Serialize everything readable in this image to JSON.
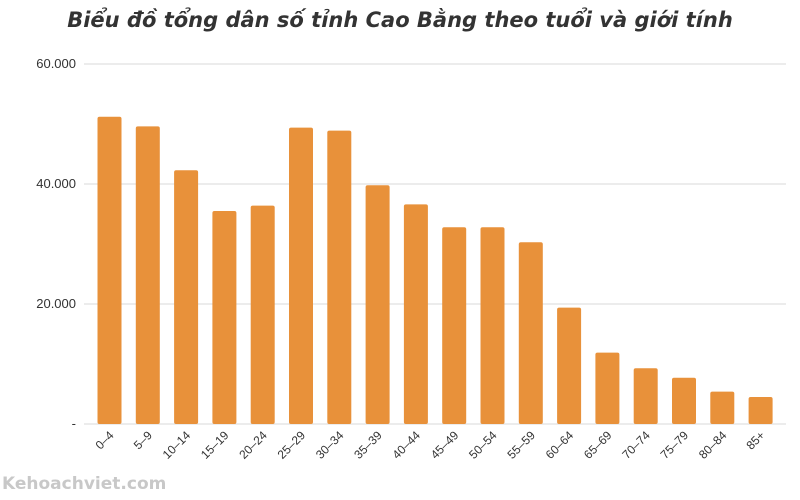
{
  "chart_data": {
    "type": "bar",
    "title": "Biểu đồ tổng dân số tỉnh Cao Bằng theo tuổi và giới tính",
    "xlabel": "",
    "ylabel": "",
    "categories": [
      "0–4",
      "5–9",
      "10–14",
      "15–19",
      "20–24",
      "25–29",
      "30–34",
      "35–39",
      "40–44",
      "45–49",
      "50–54",
      "55–59",
      "60–64",
      "65–69",
      "70–74",
      "75–79",
      "80–84",
      "85+"
    ],
    "values": [
      51200,
      49600,
      42300,
      35500,
      36400,
      49400,
      48900,
      39800,
      36600,
      32800,
      32800,
      30300,
      19400,
      11900,
      9300,
      7700,
      5400,
      4500
    ],
    "ylim": [
      0,
      60000
    ],
    "yticks": [
      {
        "value": 0,
        "label": "-"
      },
      {
        "value": 20000,
        "label": "20.000"
      },
      {
        "value": 40000,
        "label": "40.000"
      },
      {
        "value": 60000,
        "label": "60.000"
      }
    ],
    "grid": true,
    "bar_color": "#E8913A",
    "grid_color": "#d9d9d9"
  },
  "watermark": "Kehoachviet.com"
}
